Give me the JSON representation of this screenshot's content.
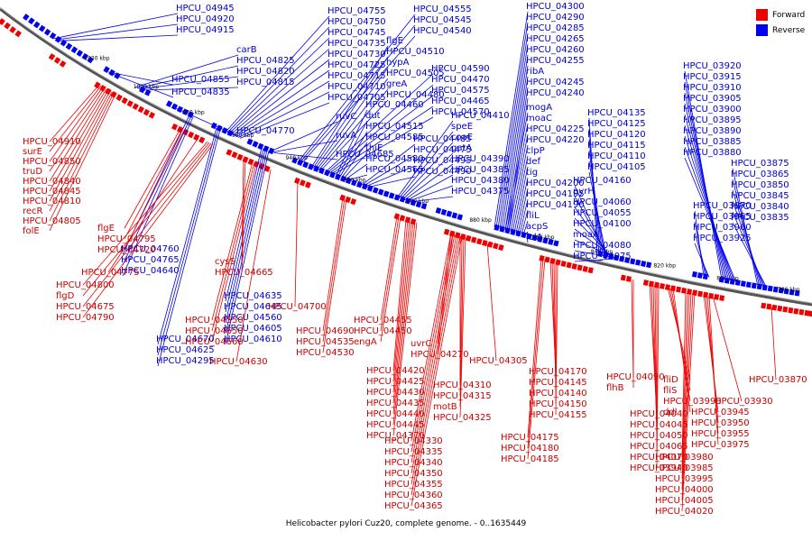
{
  "legend": {
    "forward_label": "Forward",
    "reverse_label": "Reverse",
    "forward_color": "#ee0000",
    "reverse_color": "#0000ee"
  },
  "caption": "Helicobacter pylori Cuz20, complete genome. - 0..1635449",
  "ticks": [
    "1020 kbp",
    "1000 kbp",
    "980 kbp",
    "960 kbp",
    "940 kbp",
    "920 kbp",
    "900 kbp",
    "880 kbp",
    "860 kbp",
    "840 kbp",
    "820 kbp",
    "800 kbp",
    "786 kbp"
  ],
  "reverse_genes": [
    "HPCU_04945",
    "HPCU_04920",
    "HPCU_04915",
    "carB",
    "HPCU_04825",
    "HPCU_04820",
    "HPCU_04815",
    "HPCU_04855",
    "HPCU_04835",
    "HPCU_04770",
    "HPCU_04755",
    "HPCU_04750",
    "HPCU_04745",
    "HPCU_04735",
    "HPCU_04730",
    "HPCU_04725",
    "HPCU_04715",
    "HPCU_04710",
    "HPCU_04705",
    "ruvC",
    "ruvA",
    "HPCU_04685",
    "HPCU_04555",
    "HPCU_04545",
    "HPCU_04540",
    "flgE",
    "HPCU_04510",
    "hypA",
    "HPCU_04505",
    "greA",
    "HPCU_04480",
    "HPCU_04590",
    "HPCU_04470",
    "HPCU_04575",
    "HPCU_04465",
    "HPCU_04570",
    "HPCU_04460",
    "dut",
    "HPCU_04515",
    "HPCU_04585",
    "thiE",
    "HPCU_04580",
    "HPCU_04565",
    "HPCU_04485",
    "HPCU_04475",
    "HPCU_04495",
    "HPCU_04490",
    "HPCU_04410",
    "speE",
    "coaE",
    "gatA",
    "HPCU_04390",
    "HPCU_04385",
    "HPCU_04380",
    "HPCU_04375",
    "HPCU_04300",
    "HPCU_04290",
    "HPCU_04285",
    "HPCU_04265",
    "HPCU_04260",
    "HPCU_04255",
    "ribA",
    "HPCU_04245",
    "HPCU_04240",
    "mogA",
    "moaC",
    "HPCU_04225",
    "HPCU_04220",
    "clpP",
    "def",
    "tig",
    "HPCU_04200",
    "HPCU_04195",
    "HPCU_04190",
    "fliL",
    "acpS",
    "lolA",
    "HPCU_04135",
    "HPCU_04125",
    "HPCU_04120",
    "HPCU_04115",
    "HPCU_04110",
    "HPCU_04105",
    "HPCU_04160",
    "pyrH",
    "HPCU_04060",
    "HPCU_04055",
    "HPCU_04100",
    "moaA",
    "HPCU_04080",
    "HPCU_04075",
    "HPCU_03920",
    "HPCU_03915",
    "HPCU_03910",
    "HPCU_03905",
    "HPCU_03900",
    "HPCU_03895",
    "HPCU_03890",
    "HPCU_03885",
    "HPCU_03880",
    "HPCU_03875",
    "HPCU_03865",
    "HPCU_03850",
    "HPCU_03845",
    "HPCU_03840",
    "HPCU_03835",
    "HPCU_03970",
    "HPCU_03965",
    "HPCU_03960",
    "HPCU_03925",
    "HPCU_04760",
    "HPCU_04765",
    "HPCU_04640",
    "HPCU_04635",
    "HPCU_04645",
    "HPCU_04560",
    "HPCU_04605",
    "HPCU_04610",
    "HPCU_04670",
    "HPCU_04625",
    "HPCU_04295"
  ],
  "forward_genes": [
    "HPCU_04910",
    "surE",
    "HPCU_04850",
    "truD",
    "HPCU_04840",
    "HPCU_04845",
    "HPCU_04810",
    "recR",
    "HPCU_04805",
    "folE",
    "flgE",
    "HPCU_04795",
    "HPCU_04720",
    "HPCU_04775",
    "cysS",
    "HPCU_04665",
    "HPCU_04800",
    "flgD",
    "HPCU_04675",
    "HPCU_04790",
    "HPCU_04700",
    "HPCU_04550",
    "HPCU_04650",
    "HPCU_04660",
    "HPCU_04690",
    "HPCU_04535",
    "HPCU_04530",
    "HPCU_04630",
    "HPCU_04455",
    "HPCU_04450",
    "engA",
    "HPCU_04420",
    "HPCU_04425",
    "HPCU_04430",
    "HPCU_04435",
    "HPCU_04440",
    "HPCU_04445",
    "HPCU_04370",
    "uvrC",
    "HPCU_04270",
    "HPCU_04305",
    "HPCU_04310",
    "HPCU_04315",
    "motB",
    "HPCU_04325",
    "HPCU_04330",
    "HPCU_04335",
    "HPCU_04340",
    "HPCU_04350",
    "HPCU_04355",
    "HPCU_04360",
    "HPCU_04365",
    "HPCU_04170",
    "HPCU_04145",
    "HPCU_04140",
    "HPCU_04150",
    "HPCU_04155",
    "HPCU_04175",
    "HPCU_04180",
    "HPCU_04185",
    "HPCU_04090",
    "flhB",
    "fliD",
    "fliS",
    "HPCU_03990",
    "ddl",
    "HPCU_03930",
    "HPCU_04040",
    "HPCU_04045",
    "HPCU_04050",
    "HPCU_04065",
    "HPCU_04070",
    "HPCU_03940",
    "HPCU_03945",
    "HPCU_03950",
    "HPCU_03955",
    "HPCU_03975",
    "HPCU_03980",
    "HPCU_03985",
    "HPCU_03995",
    "HPCU_04000",
    "HPCU_04005",
    "HPCU_04020",
    "HPCU_03870"
  ]
}
